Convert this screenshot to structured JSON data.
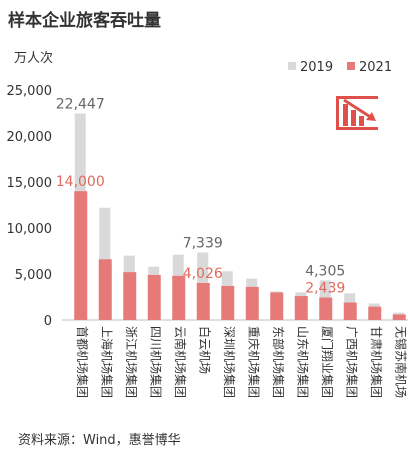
{
  "title": "样本企业旅客吞吐量",
  "unit_label": "万人次",
  "source": "资料来源：Wind，惠誉博华",
  "colors": {
    "s2019": "#d9d9d9",
    "s2021": "#e57a78",
    "highlight": "#e06a5f",
    "icon": "#e0504a"
  },
  "icon": "declining-bar-chart-icon",
  "chart_data": {
    "type": "bar",
    "ylim": [
      0,
      25000
    ],
    "yticks": [
      0,
      5000,
      10000,
      15000,
      20000,
      25000
    ],
    "ytick_labels": [
      "0",
      "5,000",
      "10,000",
      "15,000",
      "20,000",
      "25,000"
    ],
    "grid": false,
    "legend_position": "top-right",
    "categories": [
      "首都机场集团",
      "上海机场集团",
      "浙江机场集团",
      "四川机场集团",
      "云南机场集团",
      "白云机场",
      "深圳机场集团",
      "重庆机场集团",
      "东部机场集团",
      "山东机场集团",
      "厦门翔业集团",
      "广西机场集团",
      "甘肃机场集团",
      "无锡苏南机场"
    ],
    "series": [
      {
        "name": "2019",
        "values": [
          22447,
          12200,
          7000,
          5800,
          7100,
          7339,
          5300,
          4500,
          3100,
          3000,
          4305,
          2900,
          1800,
          800
        ]
      },
      {
        "name": "2021",
        "values": [
          14000,
          6600,
          5200,
          4900,
          4800,
          4026,
          3700,
          3600,
          3000,
          2600,
          2439,
          1900,
          1450,
          600
        ]
      }
    ],
    "data_labels": [
      {
        "category_index": 0,
        "series": "2019",
        "text": "22,447"
      },
      {
        "category_index": 0,
        "series": "2021",
        "text": "14,000"
      },
      {
        "category_index": 5,
        "series": "2019",
        "text": "7,339"
      },
      {
        "category_index": 5,
        "series": "2021",
        "text": "4,026"
      },
      {
        "category_index": 10,
        "series": "2019",
        "text": "4,305"
      },
      {
        "category_index": 10,
        "series": "2021",
        "text": "2,439"
      }
    ]
  }
}
